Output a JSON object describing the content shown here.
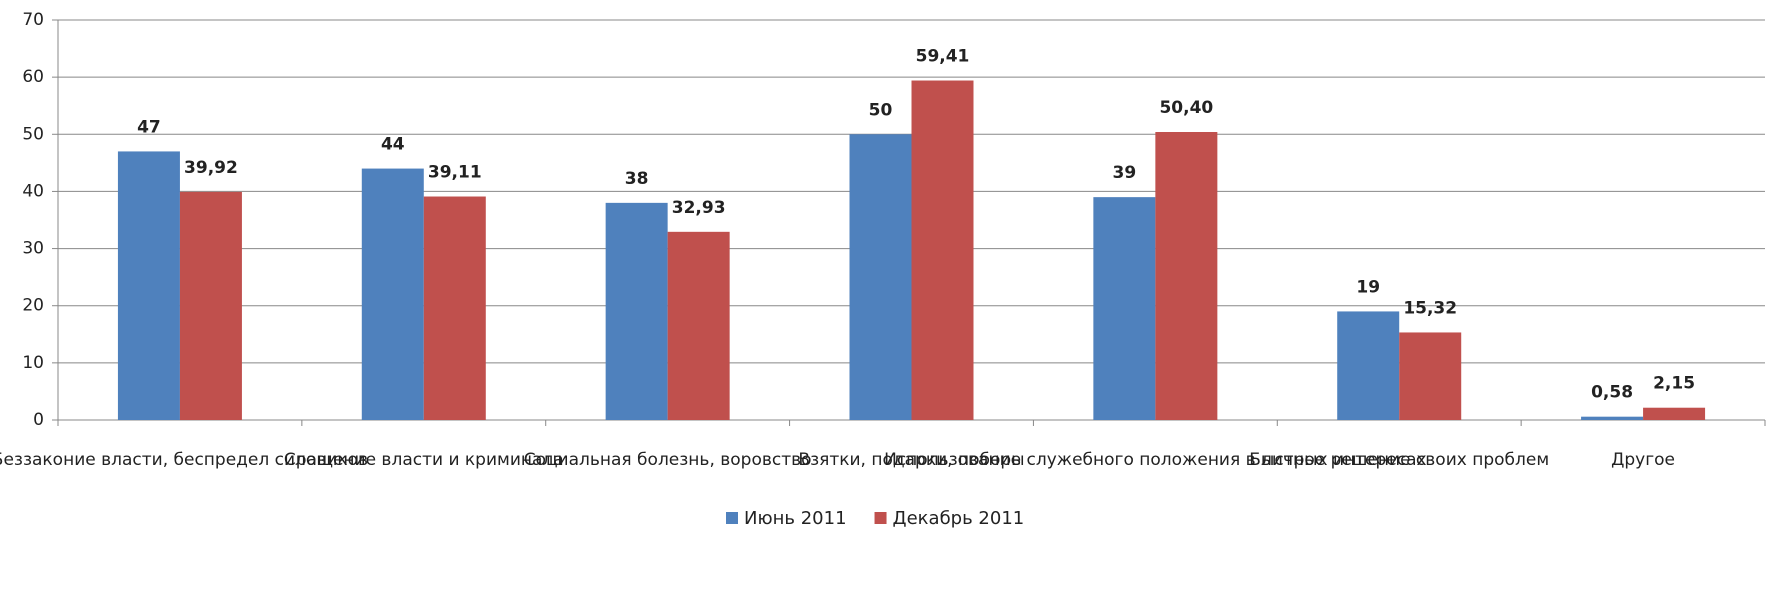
{
  "chart_data": {
    "type": "bar",
    "categories": [
      "Беззаконие власти, беспредел силовиков",
      "Сращение власти и криминала",
      "Социальная болезнь, воровство",
      "Взятки, подарки, поборы",
      "Использование служебного положения в личных интересах",
      "Быстрое решение своих проблем",
      "Другое"
    ],
    "series": [
      {
        "name": "Июнь 2011",
        "color": "#4f81bd",
        "values": [
          47,
          44,
          38,
          50,
          39,
          19,
          0.58
        ],
        "value_labels": [
          "47",
          "44",
          "38",
          "50",
          "39",
          "19",
          "0,58"
        ]
      },
      {
        "name": "Декабрь 2011",
        "color": "#c0504d",
        "values": [
          39.92,
          39.11,
          32.93,
          59.41,
          50.4,
          15.32,
          2.15
        ],
        "value_labels": [
          "39,92",
          "39,11",
          "32,93",
          "59,41",
          "50,40",
          "15,32",
          "2,15"
        ]
      }
    ],
    "ylim": [
      0,
      70
    ],
    "yticks": [
      0,
      10,
      20,
      30,
      40,
      50,
      60,
      70
    ],
    "grid": true,
    "legend": "bottom"
  }
}
